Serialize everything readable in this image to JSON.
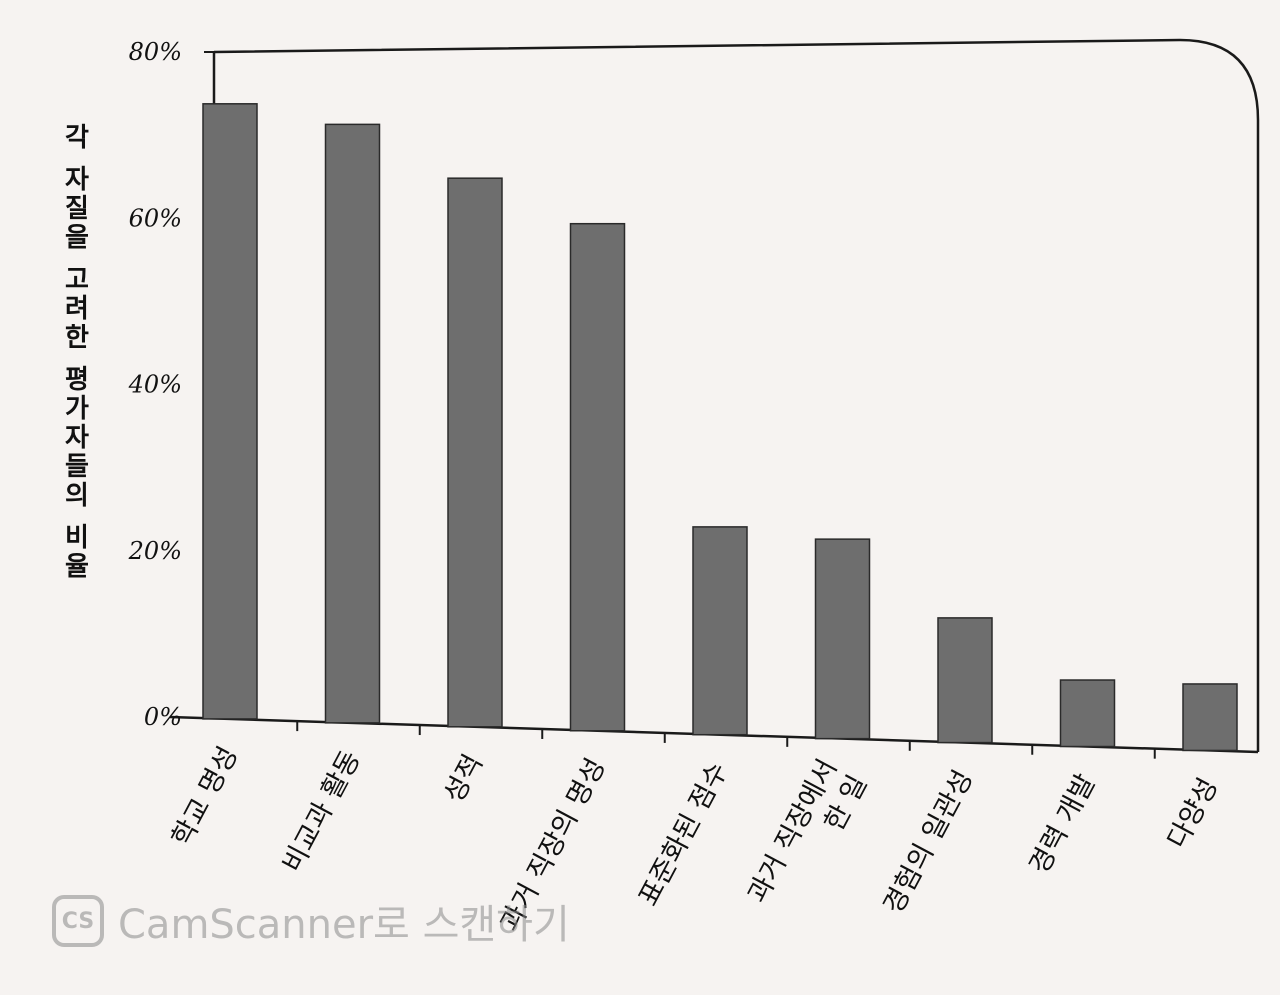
{
  "chart_data": {
    "type": "bar",
    "ylabel": "각 자질을 고려한 평가자들의 비율",
    "xlabel": "",
    "ylim": [
      0,
      80
    ],
    "yticks": [
      0,
      20,
      40,
      60,
      80
    ],
    "ytick_labels": [
      "0%",
      "20%",
      "40%",
      "60%",
      "80%"
    ],
    "grid": false,
    "legend": "none",
    "bar_color": "#6e6e6e",
    "categories": [
      [
        "학교 명성"
      ],
      [
        "비교과 활동"
      ],
      [
        "성적"
      ],
      [
        "과거 직장의 명성"
      ],
      [
        "표준화된 점수"
      ],
      [
        "과거 직장에서",
        "한 일"
      ],
      [
        "경험의 일관성"
      ],
      [
        "경력 개발"
      ],
      [
        "다양성"
      ]
    ],
    "values": [
      74,
      72,
      66,
      61,
      25,
      24,
      15,
      8,
      8
    ]
  },
  "watermark": {
    "logo": "CS",
    "text": "CamScanner로 스캔하기",
    "icon": "camscanner-logo-icon"
  }
}
